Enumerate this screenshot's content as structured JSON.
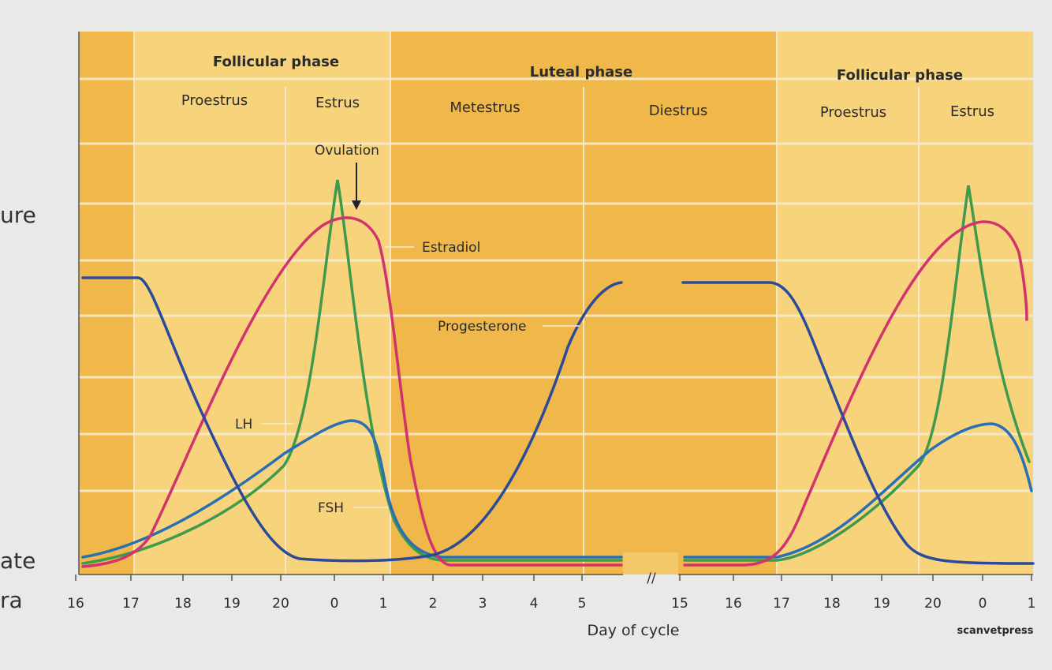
{
  "margin_text": [
    "ure",
    "ate",
    "ra"
  ],
  "chart_data": {
    "type": "line",
    "xlabel": "Day of cycle",
    "ylabel": "",
    "x_ticks": [
      "16",
      "17",
      "18",
      "19",
      "20",
      "0",
      "1",
      "2",
      "3",
      "4",
      "5",
      "15",
      "16",
      "17",
      "18",
      "19",
      "20",
      "0",
      "1"
    ],
    "axis_break": "//",
    "phases": [
      {
        "name": "Follicular phase",
        "from": "17",
        "to": "1"
      },
      {
        "name": "Luteal phase",
        "from": "1",
        "to": "17"
      },
      {
        "name": "Follicular phase",
        "from": "17",
        "to": "1"
      }
    ],
    "stages": [
      {
        "name": "Proestrus",
        "from": "17",
        "to": "20"
      },
      {
        "name": "Estrus",
        "from": "20",
        "to": "1"
      },
      {
        "name": "Metestrus",
        "from": "1",
        "to": "5"
      },
      {
        "name": "Diestrus",
        "from": "5",
        "to": "17"
      },
      {
        "name": "Proestrus",
        "from": "17",
        "to": "20"
      },
      {
        "name": "Estrus",
        "from": "20",
        "to": "1"
      }
    ],
    "annotation": {
      "text": "Ovulation",
      "x": 0.4
    },
    "series": [
      {
        "name": "Estradiol",
        "color": "#d0336e"
      },
      {
        "name": "Progesterone",
        "color": "#2b4a9c"
      },
      {
        "name": "LH",
        "color": "#3f9a4e"
      },
      {
        "name": "FSH",
        "color": "#2a6fb3"
      }
    ],
    "credit": "scanvetpress"
  }
}
